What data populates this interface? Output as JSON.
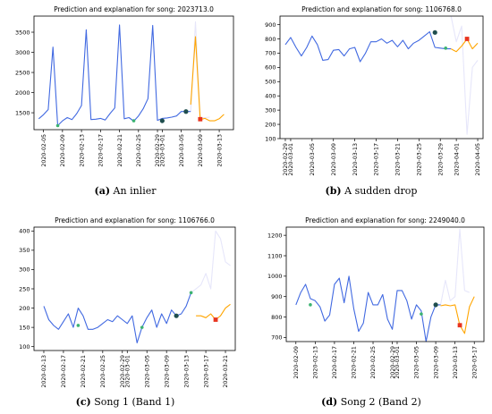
{
  "figure": {
    "captions": [
      {
        "letter": "(a)",
        "text": " An inlier"
      },
      {
        "letter": "(b)",
        "text": " A sudden drop"
      },
      {
        "letter": "(c)",
        "text": " Song 1 (Band 1)"
      },
      {
        "letter": "(d)",
        "text": " Song 2 (Band 2)"
      }
    ]
  },
  "chart_data": [
    {
      "type": "line",
      "title": "Prediction and explanation for song: 2023713.0",
      "xlabel": "",
      "ylabel": "",
      "x_type": "date",
      "xlim": [
        "2020-02-03",
        "2020-03-16"
      ],
      "ylim": [
        1080,
        3900
      ],
      "yticks": [
        1500,
        2000,
        2500,
        3000,
        3500
      ],
      "xticks": [
        "2020-02-05",
        "2020-02-09",
        "2020-02-13",
        "2020-02-17",
        "2020-02-21",
        "2020-02-25",
        "2020-02-29",
        "2020-03-01",
        "2020-03-05",
        "2020-03-09",
        "2020-03-13"
      ],
      "grid": false,
      "colors": {
        "history": "#4169e1",
        "prediction": "#ffa500",
        "explanation": "#e6e6fa",
        "marker_dark": "#1f4e4e",
        "marker_green": "#3cb371",
        "marker_red": "#e8341f"
      },
      "series": [
        {
          "role": "history",
          "x": [
            "2020-02-04",
            "2020-02-05",
            "2020-02-06",
            "2020-02-07",
            "2020-02-08",
            "2020-02-09",
            "2020-02-10",
            "2020-02-11",
            "2020-02-12",
            "2020-02-13",
            "2020-02-14",
            "2020-02-15",
            "2020-02-16",
            "2020-02-17",
            "2020-02-18",
            "2020-02-19",
            "2020-02-20",
            "2020-02-21",
            "2020-02-22",
            "2020-02-23",
            "2020-02-24",
            "2020-02-25",
            "2020-02-26",
            "2020-02-27",
            "2020-02-28",
            "2020-02-29",
            "2020-03-01",
            "2020-03-02",
            "2020-03-03",
            "2020-03-04",
            "2020-03-05",
            "2020-03-06",
            "2020-03-07"
          ],
          "y": [
            1350,
            1450,
            1580,
            3130,
            1180,
            1300,
            1380,
            1330,
            1480,
            1680,
            3560,
            1330,
            1340,
            1360,
            1320,
            1480,
            1620,
            3680,
            1350,
            1380,
            1290,
            1420,
            1600,
            1850,
            3670,
            1310,
            1360,
            1370,
            1390,
            1420,
            1530,
            1530,
            1530
          ]
        },
        {
          "role": "explanation",
          "x": [
            "2020-03-07",
            "2020-03-08",
            "2020-03-09",
            "2020-03-10",
            "2020-03-11"
          ],
          "y": [
            1530,
            3760,
            1370,
            1380,
            1390
          ]
        },
        {
          "role": "prediction",
          "x": [
            "2020-03-07",
            "2020-03-08",
            "2020-03-09",
            "2020-03-10",
            "2020-03-11",
            "2020-03-12",
            "2020-03-13",
            "2020-03-14"
          ],
          "y": [
            1700,
            3390,
            1330,
            1360,
            1300,
            1300,
            1350,
            1460
          ]
        }
      ],
      "markers": [
        {
          "color": "marker_green",
          "x": "2020-02-08",
          "y": 1180
        },
        {
          "color": "marker_green",
          "x": "2020-02-24",
          "y": 1300
        },
        {
          "color": "marker_dark",
          "x": "2020-03-01",
          "y": 1300
        },
        {
          "color": "marker_dark",
          "x": "2020-03-06",
          "y": 1530
        },
        {
          "color": "marker_red",
          "x": "2020-03-09",
          "y": 1340,
          "shape": "square"
        }
      ]
    },
    {
      "type": "line",
      "title": "Prediction and explanation for song: 1106768.0",
      "xlabel": "",
      "ylabel": "",
      "x_type": "date",
      "xlim": [
        "2020-02-28",
        "2020-04-06"
      ],
      "ylim": [
        100,
        960
      ],
      "yticks": [
        100,
        200,
        300,
        400,
        500,
        600,
        700,
        800,
        900
      ],
      "xticks": [
        "2020-02-29",
        "2020-03-01",
        "2020-03-05",
        "2020-03-09",
        "2020-03-13",
        "2020-03-17",
        "2020-03-21",
        "2020-03-25",
        "2020-03-29",
        "2020-04-01",
        "2020-04-05"
      ],
      "grid": false,
      "colors": {
        "history": "#4169e1",
        "prediction": "#ffa500",
        "explanation": "#e6e6fa",
        "marker_dark": "#1f4e4e",
        "marker_green": "#3cb371",
        "marker_red": "#e8341f"
      },
      "series": [
        {
          "role": "history",
          "x": [
            "2020-02-29",
            "2020-03-01",
            "2020-03-02",
            "2020-03-03",
            "2020-03-04",
            "2020-03-05",
            "2020-03-06",
            "2020-03-07",
            "2020-03-08",
            "2020-03-09",
            "2020-03-10",
            "2020-03-11",
            "2020-03-12",
            "2020-03-13",
            "2020-03-14",
            "2020-03-15",
            "2020-03-16",
            "2020-03-17",
            "2020-03-18",
            "2020-03-19",
            "2020-03-20",
            "2020-03-21",
            "2020-03-22",
            "2020-03-23",
            "2020-03-24",
            "2020-03-25",
            "2020-03-26",
            "2020-03-27",
            "2020-03-28",
            "2020-03-29",
            "2020-03-30",
            "2020-03-31"
          ],
          "y": [
            760,
            810,
            740,
            680,
            740,
            820,
            760,
            650,
            655,
            720,
            725,
            680,
            730,
            740,
            640,
            700,
            780,
            780,
            800,
            770,
            790,
            745,
            790,
            730,
            770,
            790,
            820,
            850,
            740,
            735,
            730,
            730
          ]
        },
        {
          "role": "explanation",
          "x": [
            "2020-03-31",
            "2020-04-01",
            "2020-04-02",
            "2020-04-03",
            "2020-04-04",
            "2020-04-05"
          ],
          "y": [
            960,
            780,
            890,
            130,
            600,
            650
          ]
        },
        {
          "role": "prediction",
          "x": [
            "2020-03-31",
            "2020-04-01",
            "2020-04-02",
            "2020-04-03",
            "2020-04-04",
            "2020-04-05"
          ],
          "y": [
            730,
            710,
            750,
            800,
            730,
            770
          ]
        }
      ],
      "markers": [
        {
          "color": "marker_dark",
          "x": "2020-03-28",
          "y": 845
        },
        {
          "color": "marker_green",
          "x": "2020-03-30",
          "y": 735
        },
        {
          "color": "marker_red",
          "x": "2020-04-03",
          "y": 800,
          "shape": "square"
        }
      ]
    },
    {
      "type": "line",
      "title": "Prediction and explanation for song: 1106766.0",
      "xlabel": "",
      "ylabel": "",
      "x_type": "date",
      "xlim": [
        "2020-02-11",
        "2020-03-23"
      ],
      "ylim": [
        90,
        410
      ],
      "yticks": [
        100,
        150,
        200,
        250,
        300,
        350,
        400
      ],
      "xticks": [
        "2020-02-13",
        "2020-02-17",
        "2020-02-21",
        "2020-02-25",
        "2020-02-29",
        "2020-03-01",
        "2020-03-05",
        "2020-03-09",
        "2020-03-13",
        "2020-03-17",
        "2020-03-21"
      ],
      "grid": false,
      "colors": {
        "history": "#4169e1",
        "prediction": "#ffa500",
        "explanation": "#e6e6fa",
        "marker_dark": "#1f4e4e",
        "marker_green": "#3cb371",
        "marker_red": "#e8341f"
      },
      "series": [
        {
          "role": "history",
          "x": [
            "2020-02-13",
            "2020-02-14",
            "2020-02-15",
            "2020-02-16",
            "2020-02-17",
            "2020-02-18",
            "2020-02-19",
            "2020-02-20",
            "2020-02-21",
            "2020-02-22",
            "2020-02-23",
            "2020-02-24",
            "2020-02-25",
            "2020-02-26",
            "2020-02-27",
            "2020-02-28",
            "2020-02-29",
            "2020-03-01",
            "2020-03-02",
            "2020-03-03",
            "2020-03-04",
            "2020-03-05",
            "2020-03-06",
            "2020-03-07",
            "2020-03-08",
            "2020-03-09",
            "2020-03-10",
            "2020-03-11",
            "2020-03-12",
            "2020-03-13",
            "2020-03-14"
          ],
          "y": [
            205,
            170,
            155,
            145,
            165,
            185,
            150,
            200,
            180,
            145,
            145,
            150,
            160,
            170,
            165,
            180,
            170,
            160,
            180,
            110,
            150,
            175,
            195,
            150,
            185,
            160,
            195,
            180,
            185,
            205,
            240
          ]
        },
        {
          "role": "explanation",
          "x": [
            "2020-03-14",
            "2020-03-16",
            "2020-03-17",
            "2020-03-18",
            "2020-03-19",
            "2020-03-20",
            "2020-03-21",
            "2020-03-22"
          ],
          "y": [
            240,
            260,
            290,
            250,
            400,
            380,
            320,
            310
          ]
        },
        {
          "role": "prediction",
          "x": [
            "2020-03-15",
            "2020-03-16",
            "2020-03-17",
            "2020-03-18",
            "2020-03-19",
            "2020-03-20",
            "2020-03-21",
            "2020-03-22"
          ],
          "y": [
            180,
            180,
            175,
            185,
            170,
            180,
            200,
            210
          ]
        }
      ],
      "markers": [
        {
          "color": "marker_green",
          "x": "2020-02-20",
          "y": 155
        },
        {
          "color": "marker_green",
          "x": "2020-03-04",
          "y": 150
        },
        {
          "color": "marker_dark",
          "x": "2020-03-11",
          "y": 180
        },
        {
          "color": "marker_green",
          "x": "2020-03-14",
          "y": 240
        },
        {
          "color": "marker_red",
          "x": "2020-03-19",
          "y": 170,
          "shape": "square"
        }
      ]
    },
    {
      "type": "line",
      "title": "Prediction and explanation for song: 2249040.0",
      "xlabel": "",
      "ylabel": "",
      "x_type": "date",
      "xlim": [
        "2020-02-07",
        "2020-03-19"
      ],
      "ylim": [
        680,
        1240
      ],
      "yticks": [
        700,
        800,
        900,
        1000,
        1100,
        1200
      ],
      "xticks": [
        "2020-02-09",
        "2020-02-13",
        "2020-02-17",
        "2020-02-21",
        "2020-02-25",
        "2020-02-29",
        "2020-03-01",
        "2020-03-05",
        "2020-03-09",
        "2020-03-13",
        "2020-03-17"
      ],
      "grid": false,
      "colors": {
        "history": "#4169e1",
        "prediction": "#ffa500",
        "explanation": "#e6e6fa",
        "marker_dark": "#1f4e4e",
        "marker_green": "#3cb371",
        "marker_red": "#e8341f"
      },
      "series": [
        {
          "role": "history",
          "x": [
            "2020-02-09",
            "2020-02-10",
            "2020-02-11",
            "2020-02-12",
            "2020-02-13",
            "2020-02-14",
            "2020-02-15",
            "2020-02-16",
            "2020-02-17",
            "2020-02-18",
            "2020-02-19",
            "2020-02-20",
            "2020-02-21",
            "2020-02-22",
            "2020-02-23",
            "2020-02-24",
            "2020-02-25",
            "2020-02-26",
            "2020-02-27",
            "2020-02-28",
            "2020-02-29",
            "2020-03-01",
            "2020-03-02",
            "2020-03-03",
            "2020-03-04",
            "2020-03-05",
            "2020-03-06",
            "2020-03-07",
            "2020-03-08",
            "2020-03-09",
            "2020-03-10"
          ],
          "y": [
            860,
            920,
            960,
            890,
            880,
            850,
            780,
            810,
            960,
            990,
            870,
            1000,
            840,
            730,
            770,
            920,
            860,
            860,
            910,
            790,
            740,
            930,
            930,
            880,
            790,
            860,
            830,
            680,
            800,
            860,
            860
          ]
        },
        {
          "role": "explanation",
          "x": [
            "2020-03-10",
            "2020-03-11",
            "2020-03-12",
            "2020-03-13",
            "2020-03-14",
            "2020-03-15",
            "2020-03-16"
          ],
          "y": [
            860,
            980,
            880,
            900,
            1230,
            930,
            920
          ]
        },
        {
          "role": "prediction",
          "x": [
            "2020-03-10",
            "2020-03-11",
            "2020-03-12",
            "2020-03-13",
            "2020-03-14",
            "2020-03-15",
            "2020-03-16",
            "2020-03-17"
          ],
          "y": [
            855,
            860,
            855,
            860,
            760,
            720,
            850,
            900
          ]
        }
      ],
      "markers": [
        {
          "color": "marker_green",
          "x": "2020-02-12",
          "y": 860
        },
        {
          "color": "marker_green",
          "x": "2020-03-06",
          "y": 815
        },
        {
          "color": "marker_dark",
          "x": "2020-03-09",
          "y": 860
        },
        {
          "color": "marker_red",
          "x": "2020-03-14",
          "y": 760,
          "shape": "square"
        }
      ]
    }
  ]
}
